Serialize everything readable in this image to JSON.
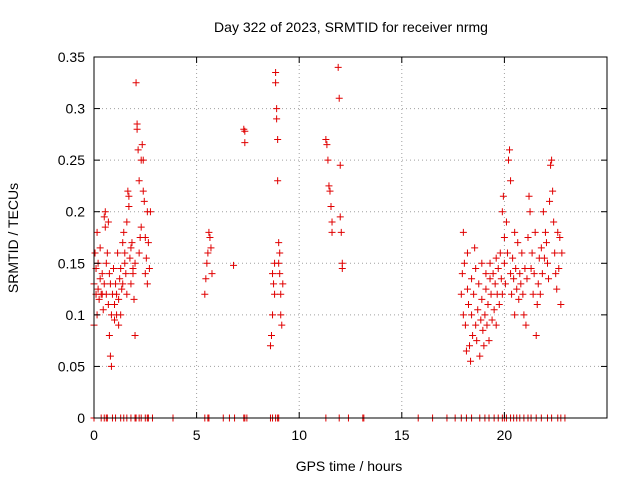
{
  "chart_data": {
    "type": "scatter",
    "title": "Day 322 of 2023, SRMTID for receiver nrmg",
    "xlabel": "GPS time / hours",
    "ylabel": "SRMTID / TECUs",
    "xlim": [
      0,
      25
    ],
    "ylim": [
      0,
      0.35
    ],
    "xticks": [
      0,
      5,
      10,
      15,
      20
    ],
    "xtick_labels": [
      "0",
      "5",
      "10",
      "15",
      "20"
    ],
    "yticks": [
      0,
      0.05,
      0.1,
      0.15,
      0.2,
      0.25,
      0.3,
      0.35
    ],
    "ytick_labels": [
      "0",
      "0.05",
      "0.1",
      "0.15",
      "0.2",
      "0.25",
      "0.3",
      "0.35"
    ],
    "grid": true,
    "marker": "+",
    "color": "#e00000",
    "series": [
      {
        "name": "SRMTID",
        "points": [
          [
            0.0,
            0.09
          ],
          [
            0.0,
            0.13
          ],
          [
            0.05,
            0.16
          ],
          [
            0.1,
            0.12
          ],
          [
            0.1,
            0.145
          ],
          [
            0.15,
            0.18
          ],
          [
            0.15,
            0.1
          ],
          [
            0.2,
            0.125
          ],
          [
            0.2,
            0.15
          ],
          [
            0.25,
            0.115
          ],
          [
            0.3,
            0.135
          ],
          [
            0.3,
            0.165
          ],
          [
            0.35,
            0.12
          ],
          [
            0.4,
            0.12
          ],
          [
            0.4,
            0.14
          ],
          [
            0.45,
            0.105
          ],
          [
            0.5,
            0.13
          ],
          [
            0.5,
            0.195
          ],
          [
            0.55,
            0.2
          ],
          [
            0.55,
            0.185
          ],
          [
            0.6,
            0.15
          ],
          [
            0.6,
            0.12
          ],
          [
            0.65,
            0.16
          ],
          [
            0.7,
            0.19
          ],
          [
            0.7,
            0.11
          ],
          [
            0.75,
            0.08
          ],
          [
            0.75,
            0.14
          ],
          [
            0.8,
            0.13
          ],
          [
            0.8,
            0.06
          ],
          [
            0.85,
            0.05
          ],
          [
            0.85,
            0.1
          ],
          [
            0.9,
            0.12
          ],
          [
            0.95,
            0.145
          ],
          [
            1.0,
            0.095
          ],
          [
            1.0,
            0.11
          ],
          [
            1.05,
            0.13
          ],
          [
            1.1,
            0.12
          ],
          [
            1.1,
            0.1
          ],
          [
            1.15,
            0.16
          ],
          [
            1.2,
            0.09
          ],
          [
            1.2,
            0.115
          ],
          [
            1.25,
            0.135
          ],
          [
            1.3,
            0.1
          ],
          [
            1.3,
            0.145
          ],
          [
            1.35,
            0.125
          ],
          [
            1.4,
            0.13
          ],
          [
            1.4,
            0.17
          ],
          [
            1.45,
            0.18
          ],
          [
            1.5,
            0.15
          ],
          [
            1.5,
            0.16
          ],
          [
            1.55,
            0.14
          ],
          [
            1.6,
            0.12
          ],
          [
            1.6,
            0.19
          ],
          [
            1.65,
            0.22
          ],
          [
            1.7,
            0.205
          ],
          [
            1.7,
            0.215
          ],
          [
            1.75,
            0.155
          ],
          [
            1.8,
            0.13
          ],
          [
            1.8,
            0.165
          ],
          [
            1.85,
            0.17
          ],
          [
            1.9,
            0.145
          ],
          [
            1.9,
            0.14
          ],
          [
            1.95,
            0.115
          ],
          [
            2.0,
            0.15
          ],
          [
            2.0,
            0.08
          ],
          [
            2.05,
            0.325
          ],
          [
            2.1,
            0.28
          ],
          [
            2.1,
            0.285
          ],
          [
            2.15,
            0.26
          ],
          [
            2.2,
            0.16
          ],
          [
            2.2,
            0.23
          ],
          [
            2.25,
            0.175
          ],
          [
            2.3,
            0.185
          ],
          [
            2.3,
            0.25
          ],
          [
            2.35,
            0.265
          ],
          [
            2.4,
            0.25
          ],
          [
            2.4,
            0.22
          ],
          [
            2.45,
            0.21
          ],
          [
            2.5,
            0.175
          ],
          [
            2.5,
            0.14
          ],
          [
            2.55,
            0.155
          ],
          [
            2.6,
            0.13
          ],
          [
            2.6,
            0.2
          ],
          [
            2.65,
            0.17
          ],
          [
            2.7,
            0.145
          ],
          [
            2.75,
            0.2
          ],
          [
            5.4,
            0.12
          ],
          [
            5.45,
            0.135
          ],
          [
            5.5,
            0.15
          ],
          [
            5.55,
            0.16
          ],
          [
            5.6,
            0.18
          ],
          [
            5.65,
            0.175
          ],
          [
            5.7,
            0.165
          ],
          [
            5.75,
            0.14
          ],
          [
            6.8,
            0.148
          ],
          [
            7.3,
            0.28
          ],
          [
            7.35,
            0.278
          ],
          [
            7.35,
            0.267
          ],
          [
            8.6,
            0.07
          ],
          [
            8.65,
            0.08
          ],
          [
            8.7,
            0.1
          ],
          [
            8.7,
            0.14
          ],
          [
            8.75,
            0.13
          ],
          [
            8.8,
            0.15
          ],
          [
            8.8,
            0.12
          ],
          [
            8.85,
            0.335
          ],
          [
            8.85,
            0.325
          ],
          [
            8.9,
            0.3
          ],
          [
            8.9,
            0.29
          ],
          [
            8.95,
            0.27
          ],
          [
            8.95,
            0.23
          ],
          [
            9.0,
            0.17
          ],
          [
            9.0,
            0.15
          ],
          [
            9.05,
            0.16
          ],
          [
            9.05,
            0.14
          ],
          [
            9.1,
            0.12
          ],
          [
            9.1,
            0.1
          ],
          [
            9.15,
            0.09
          ],
          [
            9.2,
            0.13
          ],
          [
            11.3,
            0.27
          ],
          [
            11.35,
            0.265
          ],
          [
            11.4,
            0.25
          ],
          [
            11.45,
            0.225
          ],
          [
            11.5,
            0.22
          ],
          [
            11.55,
            0.205
          ],
          [
            11.6,
            0.19
          ],
          [
            11.6,
            0.18
          ],
          [
            11.9,
            0.34
          ],
          [
            11.95,
            0.31
          ],
          [
            12.0,
            0.245
          ],
          [
            12.0,
            0.195
          ],
          [
            12.05,
            0.18
          ],
          [
            12.1,
            0.15
          ],
          [
            12.1,
            0.145
          ],
          [
            17.9,
            0.12
          ],
          [
            17.95,
            0.14
          ],
          [
            18.0,
            0.18
          ],
          [
            18.0,
            0.1
          ],
          [
            18.05,
            0.15
          ],
          [
            18.1,
            0.09
          ],
          [
            18.15,
            0.065
          ],
          [
            18.2,
            0.125
          ],
          [
            18.2,
            0.16
          ],
          [
            18.25,
            0.11
          ],
          [
            18.3,
            0.07
          ],
          [
            18.35,
            0.055
          ],
          [
            18.4,
            0.1
          ],
          [
            18.4,
            0.135
          ],
          [
            18.45,
            0.08
          ],
          [
            18.5,
            0.12
          ],
          [
            18.55,
            0.165
          ],
          [
            18.6,
            0.09
          ],
          [
            18.6,
            0.145
          ],
          [
            18.65,
            0.075
          ],
          [
            18.7,
            0.105
          ],
          [
            18.75,
            0.13
          ],
          [
            18.8,
            0.06
          ],
          [
            18.85,
            0.095
          ],
          [
            18.9,
            0.15
          ],
          [
            18.9,
            0.115
          ],
          [
            18.95,
            0.085
          ],
          [
            19.0,
            0.07
          ],
          [
            19.05,
            0.1
          ],
          [
            19.1,
            0.125
          ],
          [
            19.1,
            0.14
          ],
          [
            19.15,
            0.09
          ],
          [
            19.2,
            0.11
          ],
          [
            19.25,
            0.075
          ],
          [
            19.3,
            0.135
          ],
          [
            19.3,
            0.15
          ],
          [
            19.35,
            0.12
          ],
          [
            19.4,
            0.095
          ],
          [
            19.45,
            0.14
          ],
          [
            19.5,
            0.105
          ],
          [
            19.55,
            0.13
          ],
          [
            19.6,
            0.155
          ],
          [
            19.6,
            0.09
          ],
          [
            19.65,
            0.12
          ],
          [
            19.7,
            0.145
          ],
          [
            19.75,
            0.11
          ],
          [
            19.8,
            0.16
          ],
          [
            19.85,
            0.135
          ],
          [
            19.9,
            0.2
          ],
          [
            19.9,
            0.12
          ],
          [
            19.95,
            0.215
          ],
          [
            20.0,
            0.175
          ],
          [
            20.0,
            0.15
          ],
          [
            20.05,
            0.13
          ],
          [
            20.1,
            0.19
          ],
          [
            20.15,
            0.16
          ],
          [
            20.2,
            0.25
          ],
          [
            20.25,
            0.26
          ],
          [
            20.3,
            0.23
          ],
          [
            20.3,
            0.14
          ],
          [
            20.35,
            0.12
          ],
          [
            20.4,
            0.155
          ],
          [
            20.45,
            0.135
          ],
          [
            20.5,
            0.18
          ],
          [
            20.5,
            0.1
          ],
          [
            20.55,
            0.145
          ],
          [
            20.6,
            0.125
          ],
          [
            20.65,
            0.17
          ],
          [
            20.7,
            0.115
          ],
          [
            20.75,
            0.14
          ],
          [
            20.8,
            0.13
          ],
          [
            20.85,
            0.16
          ],
          [
            20.9,
            0.12
          ],
          [
            20.95,
            0.1
          ],
          [
            21.0,
            0.145
          ],
          [
            21.05,
            0.09
          ],
          [
            21.1,
            0.135
          ],
          [
            21.15,
            0.175
          ],
          [
            21.2,
            0.215
          ],
          [
            21.25,
            0.2
          ],
          [
            21.3,
            0.145
          ],
          [
            21.35,
            0.16
          ],
          [
            21.4,
            0.12
          ],
          [
            21.45,
            0.14
          ],
          [
            21.5,
            0.18
          ],
          [
            21.55,
            0.08
          ],
          [
            21.6,
            0.11
          ],
          [
            21.65,
            0.13
          ],
          [
            21.7,
            0.155
          ],
          [
            21.75,
            0.12
          ],
          [
            21.8,
            0.165
          ],
          [
            21.85,
            0.14
          ],
          [
            21.9,
            0.2
          ],
          [
            21.95,
            0.155
          ],
          [
            22.0,
            0.18
          ],
          [
            22.05,
            0.17
          ],
          [
            22.1,
            0.15
          ],
          [
            22.15,
            0.135
          ],
          [
            22.2,
            0.21
          ],
          [
            22.25,
            0.245
          ],
          [
            22.3,
            0.25
          ],
          [
            22.35,
            0.22
          ],
          [
            22.4,
            0.19
          ],
          [
            22.45,
            0.16
          ],
          [
            22.5,
            0.14
          ],
          [
            22.55,
            0.125
          ],
          [
            22.6,
            0.18
          ],
          [
            22.65,
            0.145
          ],
          [
            22.7,
            0.175
          ],
          [
            22.75,
            0.11
          ],
          [
            22.8,
            0.16
          ]
        ]
      }
    ],
    "zero_row": [
      0.0,
      0.35,
      0.5,
      0.6,
      0.65,
      0.9,
      1.05,
      1.3,
      1.45,
      1.6,
      1.8,
      2.0,
      2.05,
      2.2,
      2.3,
      2.5,
      2.6,
      2.65,
      2.85,
      3.85,
      5.4,
      5.55,
      5.6,
      6.3,
      6.6,
      6.85,
      7.3,
      7.35,
      7.45,
      8.6,
      8.7,
      8.85,
      8.95,
      9.0,
      11.3,
      11.95,
      12.4,
      13.1,
      13.15,
      15.8,
      16.5,
      17.2,
      17.6,
      17.9,
      18.15,
      18.4,
      18.8,
      19.05,
      19.25,
      19.5,
      19.7,
      19.9,
      20.0,
      20.1,
      20.3,
      20.45,
      20.6,
      20.75,
      20.95,
      21.15,
      21.3,
      21.55,
      21.8,
      22.1,
      22.3,
      22.6,
      22.75,
      22.95
    ]
  }
}
